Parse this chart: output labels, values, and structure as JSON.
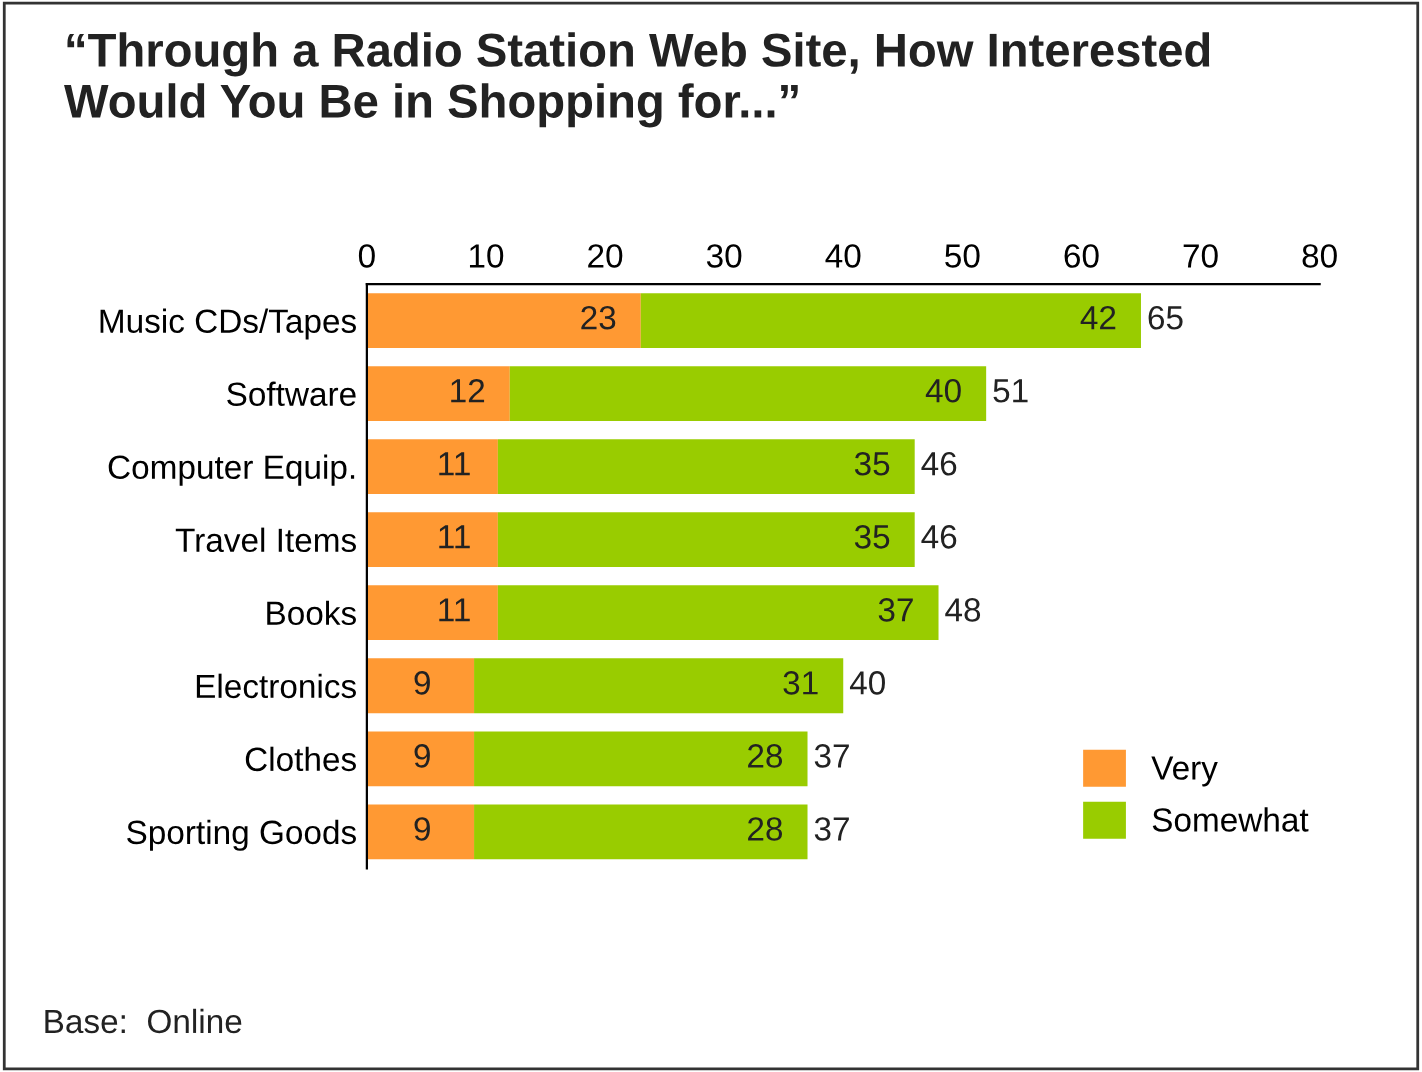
{
  "chart_data": {
    "type": "bar",
    "orientation": "horizontal",
    "stacked": true,
    "title": "“Through a Radio Station Web Site, How Interested\nWould You Be in Shopping for...”",
    "categories": [
      "Music CDs/Tapes",
      "Software",
      "Computer Equip.",
      "Travel Items",
      "Books",
      "Electronics",
      "Clothes",
      "Sporting Goods"
    ],
    "series": [
      {
        "name": "Very",
        "color": "#ff9933",
        "values": [
          23,
          12,
          11,
          11,
          11,
          9,
          9,
          9
        ]
      },
      {
        "name": "Somewhat",
        "color": "#99cc00",
        "values": [
          42,
          40,
          35,
          35,
          37,
          31,
          28,
          28
        ]
      }
    ],
    "totals": [
      "65",
      "51",
      "46",
      "46",
      "48",
      "40",
      "37",
      "37"
    ],
    "data_labels": true,
    "xlim": [
      0,
      80
    ],
    "xticks": [
      0,
      10,
      20,
      30,
      40,
      50,
      60,
      70,
      80
    ],
    "grid": false,
    "legend": "bottom right",
    "annotations": [
      "Base:  Online"
    ]
  }
}
